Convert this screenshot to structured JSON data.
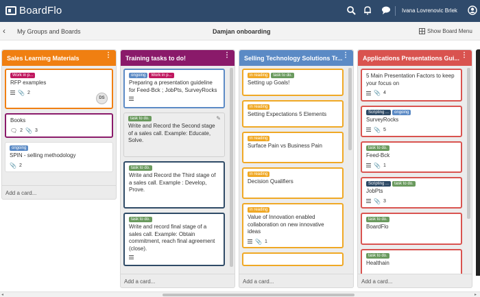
{
  "app": {
    "name": "BoardFlo"
  },
  "topbar": {
    "user_name": "Ivana Lovrenovic Brlek",
    "icons": [
      "search-icon",
      "bell-icon",
      "chat-icon",
      "user-icon"
    ]
  },
  "subheader": {
    "back_icon": "chevron-left-icon",
    "breadcrumb": "My Groups and Boards",
    "board_title": "Damjan onboarding",
    "show_menu": "Show Board Menu"
  },
  "colors": {
    "header_bg": "#2f4a6b",
    "orange": "#f07f11",
    "purple": "#8a1a6a",
    "blue": "#5b8ac5",
    "red": "#d9534f",
    "label_pink": "#c0185f",
    "label_blue": "#5b8ac5",
    "label_green": "#6a9a5e",
    "label_yellow": "#f0a824",
    "label_navy": "#2e4a66"
  },
  "lists": [
    {
      "title": "Sales Learning Materials",
      "color": "#f07f11",
      "add_card": "Add a card...",
      "cards": [
        {
          "labels": [
            {
              "text": "Work in p...",
              "color": "#c0185f"
            }
          ],
          "title": "RFP examples",
          "border": "#f07f11",
          "desc": true,
          "attachments": "2",
          "avatar": "DS"
        },
        {
          "labels": [],
          "title": "Books",
          "border": "#8a1a6a",
          "comments": "2",
          "attachments": "3"
        },
        {
          "labels": [
            {
              "text": "ongoing",
              "color": "#5b8ac5"
            }
          ],
          "title": "SPIN - selling methodology",
          "border": "transparent",
          "attachments": "2"
        }
      ]
    },
    {
      "title": "Training tasks to do!",
      "color": "#8a1a6a",
      "add_card": "Add a card...",
      "cards": [
        {
          "labels": [
            {
              "text": "ongoing",
              "color": "#5b8ac5"
            },
            {
              "text": "Work in p...",
              "color": "#c0185f"
            }
          ],
          "title": "Preparing a presentation guideline for Feed-Bck ; JobPts, SurveyRocks",
          "border": "#5b8ac5",
          "desc": true
        },
        {
          "labels": [
            {
              "text": "task to do.",
              "color": "#6a9a5e"
            }
          ],
          "title": "Write and Record the Second stage of a sales call. Example: Educate, Solve.",
          "border": "transparent",
          "hover": true
        },
        {
          "labels": [
            {
              "text": "task to do.",
              "color": "#6a9a5e"
            }
          ],
          "title": "Write and Record the Third stage of a sales call. Example : Develop, Prove.",
          "border": "#2e4a66"
        },
        {
          "labels": [
            {
              "text": "task to do.",
              "color": "#6a9a5e"
            }
          ],
          "title": "Write and record final stage of a sales call. Example: Obtain commitment, reach final agreement (close).",
          "border": "#2e4a66",
          "desc": true
        }
      ]
    },
    {
      "title": "Selling Technology Solutions Tr...",
      "color": "#5b8ac5",
      "add_card": "Add a card...",
      "cards": [
        {
          "labels": [
            {
              "text": "in reading",
              "color": "#f0a824"
            },
            {
              "text": "task to do.",
              "color": "#6a9a5e"
            }
          ],
          "title": "Setting up Goals!",
          "border": "#f0a824"
        },
        {
          "labels": [
            {
              "text": "in reading",
              "color": "#f0a824"
            }
          ],
          "title": "Setting Expectations 5 Elements",
          "border": "#f0a824"
        },
        {
          "labels": [
            {
              "text": "in reading",
              "color": "#f0a824"
            }
          ],
          "title": "Surface Pain vs Business Pain",
          "border": "#f0a824"
        },
        {
          "labels": [
            {
              "text": "in reading",
              "color": "#f0a824"
            }
          ],
          "title": "Decision Qualifiers",
          "border": "#f0a824"
        },
        {
          "labels": [
            {
              "text": "in reading",
              "color": "#f0a824"
            }
          ],
          "title": "Value of Innovation enabled collaboration on new innovative ideas",
          "border": "#f0a824",
          "desc": true,
          "attachments": "1"
        }
      ]
    },
    {
      "title": "Applications Presentations Gui...",
      "color": "#d9534f",
      "add_card": "Add a card...",
      "cards": [
        {
          "labels": [],
          "title": "5 Main Presentation Factors to keep your focus on",
          "border": "#d9534f",
          "desc": true,
          "attachments": "4"
        },
        {
          "labels": [
            {
              "text": "Scripting ...",
              "color": "#2e4a66"
            },
            {
              "text": "ongoing",
              "color": "#5b8ac5"
            }
          ],
          "title": "SurveyRocks",
          "border": "#d9534f",
          "desc": true,
          "attachments": "5"
        },
        {
          "labels": [
            {
              "text": "task to do.",
              "color": "#6a9a5e"
            }
          ],
          "title": "Feed-Bck",
          "border": "#d9534f",
          "desc": true,
          "attachments": "1"
        },
        {
          "labels": [
            {
              "text": "Scripting ...",
              "color": "#2e4a66"
            },
            {
              "text": "task to do.",
              "color": "#6a9a5e"
            }
          ],
          "title": "JobPts",
          "border": "#d9534f",
          "desc": true,
          "attachments": "3"
        },
        {
          "labels": [
            {
              "text": "task to do.",
              "color": "#6a9a5e"
            }
          ],
          "title": "BoardFlo",
          "border": "#d9534f"
        },
        {
          "labels": [
            {
              "text": "task to do.",
              "color": "#6a9a5e"
            }
          ],
          "title": "Healthain",
          "border": "#d9534f"
        }
      ]
    }
  ]
}
